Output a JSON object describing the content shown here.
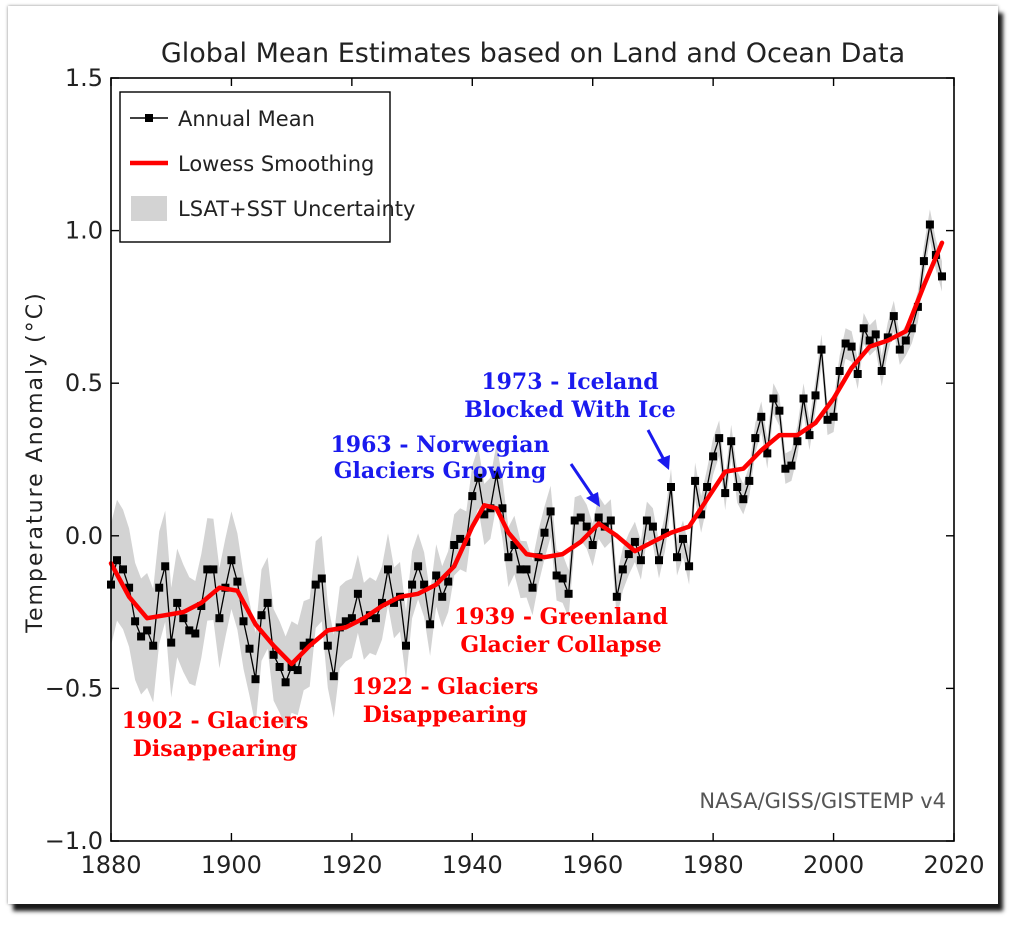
{
  "chart_data": {
    "type": "line",
    "title": "Global Mean Estimates based on Land and Ocean Data",
    "xlabel": "",
    "ylabel": "Temperature Anomaly (°C)",
    "xlim": [
      1880,
      2020
    ],
    "ylim": [
      -1.0,
      1.5
    ],
    "xticks": [
      "1880",
      "1900",
      "1920",
      "1940",
      "1960",
      "1980",
      "2000",
      "2020"
    ],
    "yticks": [
      "1.5",
      "1.0",
      "0.5",
      "0.0",
      "-0.5",
      "-1.0"
    ],
    "grid": false,
    "legend_position": "top-left",
    "legend": [
      {
        "label": "Annual Mean",
        "marker": "square-line",
        "color": "#000000"
      },
      {
        "label": "Lowess Smoothing",
        "marker": "line",
        "color": "#ff0000"
      },
      {
        "label": "LSAT+SST Uncertainty",
        "marker": "band",
        "color": "#d3d3d3"
      }
    ],
    "series": [
      {
        "name": "Annual Mean",
        "color": "#000000",
        "x": [
          1880,
          1881,
          1882,
          1883,
          1884,
          1885,
          1886,
          1887,
          1888,
          1889,
          1890,
          1891,
          1892,
          1893,
          1894,
          1895,
          1896,
          1897,
          1898,
          1899,
          1900,
          1901,
          1902,
          1903,
          1904,
          1905,
          1906,
          1907,
          1908,
          1909,
          1910,
          1911,
          1912,
          1913,
          1914,
          1915,
          1916,
          1917,
          1918,
          1919,
          1920,
          1921,
          1922,
          1923,
          1924,
          1925,
          1926,
          1927,
          1928,
          1929,
          1930,
          1931,
          1932,
          1933,
          1934,
          1935,
          1936,
          1937,
          1938,
          1939,
          1940,
          1941,
          1942,
          1943,
          1944,
          1945,
          1946,
          1947,
          1948,
          1949,
          1950,
          1951,
          1952,
          1953,
          1954,
          1955,
          1956,
          1957,
          1958,
          1959,
          1960,
          1961,
          1962,
          1963,
          1964,
          1965,
          1966,
          1967,
          1968,
          1969,
          1970,
          1971,
          1972,
          1973,
          1974,
          1975,
          1976,
          1977,
          1978,
          1979,
          1980,
          1981,
          1982,
          1983,
          1984,
          1985,
          1986,
          1987,
          1988,
          1989,
          1990,
          1991,
          1992,
          1993,
          1994,
          1995,
          1996,
          1997,
          1998,
          1999,
          2000,
          2001,
          2002,
          2003,
          2004,
          2005,
          2006,
          2007,
          2008,
          2009,
          2010,
          2011,
          2012,
          2013,
          2014,
          2015,
          2016,
          2017,
          2018
        ],
        "values": [
          -0.16,
          -0.08,
          -0.11,
          -0.17,
          -0.28,
          -0.33,
          -0.31,
          -0.36,
          -0.17,
          -0.1,
          -0.35,
          -0.22,
          -0.27,
          -0.31,
          -0.32,
          -0.23,
          -0.11,
          -0.11,
          -0.27,
          -0.17,
          -0.08,
          -0.15,
          -0.28,
          -0.37,
          -0.47,
          -0.26,
          -0.22,
          -0.39,
          -0.43,
          -0.48,
          -0.43,
          -0.44,
          -0.36,
          -0.35,
          -0.16,
          -0.14,
          -0.36,
          -0.46,
          -0.3,
          -0.28,
          -0.27,
          -0.19,
          -0.28,
          -0.26,
          -0.27,
          -0.22,
          -0.11,
          -0.22,
          -0.2,
          -0.36,
          -0.16,
          -0.1,
          -0.16,
          -0.29,
          -0.13,
          -0.2,
          -0.15,
          -0.03,
          -0.01,
          -0.02,
          0.13,
          0.19,
          0.07,
          0.09,
          0.2,
          0.09,
          -0.07,
          -0.03,
          -0.11,
          -0.11,
          -0.17,
          -0.07,
          0.01,
          0.08,
          -0.13,
          -0.14,
          -0.19,
          0.05,
          0.06,
          0.03,
          -0.03,
          0.06,
          0.03,
          0.05,
          -0.2,
          -0.11,
          -0.06,
          -0.02,
          -0.08,
          0.05,
          0.03,
          -0.08,
          0.01,
          0.16,
          -0.07,
          -0.01,
          -0.1,
          0.18,
          0.07,
          0.16,
          0.26,
          0.32,
          0.14,
          0.31,
          0.16,
          0.12,
          0.18,
          0.32,
          0.39,
          0.27,
          0.45,
          0.41,
          0.22,
          0.23,
          0.31,
          0.45,
          0.33,
          0.46,
          0.61,
          0.38,
          0.39,
          0.54,
          0.63,
          0.62,
          0.53,
          0.68,
          0.64,
          0.66,
          0.54,
          0.65,
          0.72,
          0.61,
          0.64,
          0.68,
          0.75,
          0.9,
          1.02,
          0.92,
          0.85
        ]
      },
      {
        "name": "Lowess Smoothing",
        "color": "#ff0000",
        "x": [
          1880,
          1883,
          1886,
          1889,
          1892,
          1895,
          1898,
          1901,
          1904,
          1907,
          1910,
          1913,
          1916,
          1919,
          1922,
          1925,
          1928,
          1931,
          1934,
          1937,
          1940,
          1942,
          1944,
          1946,
          1949,
          1952,
          1955,
          1958,
          1961,
          1964,
          1967,
          1970,
          1973,
          1976,
          1979,
          1982,
          1985,
          1988,
          1991,
          1994,
          1997,
          2000,
          2003,
          2006,
          2009,
          2012,
          2015,
          2018
        ],
        "values": [
          -0.09,
          -0.2,
          -0.27,
          -0.26,
          -0.25,
          -0.22,
          -0.17,
          -0.18,
          -0.29,
          -0.36,
          -0.42,
          -0.36,
          -0.31,
          -0.3,
          -0.27,
          -0.23,
          -0.2,
          -0.19,
          -0.16,
          -0.1,
          0.03,
          0.1,
          0.09,
          0.01,
          -0.06,
          -0.07,
          -0.06,
          -0.02,
          0.04,
          0.0,
          -0.05,
          -0.02,
          0.01,
          0.03,
          0.12,
          0.21,
          0.22,
          0.28,
          0.33,
          0.33,
          0.37,
          0.45,
          0.55,
          0.62,
          0.64,
          0.67,
          0.82,
          0.96
        ]
      },
      {
        "name": "LSAT+SST Uncertainty",
        "type": "band",
        "color": "#d3d3d3",
        "x": [
          1880,
          1885,
          1890,
          1895,
          1900,
          1905,
          1910,
          1915,
          1920,
          1925,
          1930,
          1935,
          1940,
          1945,
          1950,
          1955,
          1960,
          1965,
          1970,
          1975,
          1980,
          1985,
          1990,
          1995,
          2000,
          2005,
          2010,
          2015,
          2018
        ],
        "half_width": [
          0.2,
          0.19,
          0.18,
          0.17,
          0.16,
          0.15,
          0.15,
          0.14,
          0.13,
          0.12,
          0.11,
          0.1,
          0.1,
          0.1,
          0.09,
          0.08,
          0.07,
          0.07,
          0.06,
          0.06,
          0.06,
          0.05,
          0.05,
          0.05,
          0.05,
          0.05,
          0.05,
          0.05,
          0.05
        ]
      }
    ],
    "annotations": [
      {
        "text": "1902 - Glaciers",
        "color": "#ff0000"
      },
      {
        "text": "Disappearing",
        "color": "#ff0000"
      },
      {
        "text": "1922 - Glaciers",
        "color": "#ff0000"
      },
      {
        "text": "Disappearing",
        "color": "#ff0000"
      },
      {
        "text": "1939 - Greenland",
        "color": "#ff0000"
      },
      {
        "text": "Glacier Collapse",
        "color": "#ff0000"
      },
      {
        "text": "1963 - Norwegian",
        "color": "#1a1aee"
      },
      {
        "text": "Glaciers Growing",
        "color": "#1a1aee"
      },
      {
        "text": "1973 - Iceland",
        "color": "#1a1aee"
      },
      {
        "text": "Blocked With Ice",
        "color": "#1a1aee"
      }
    ],
    "source_label": "NASA/GISS/GISTEMP v4"
  }
}
